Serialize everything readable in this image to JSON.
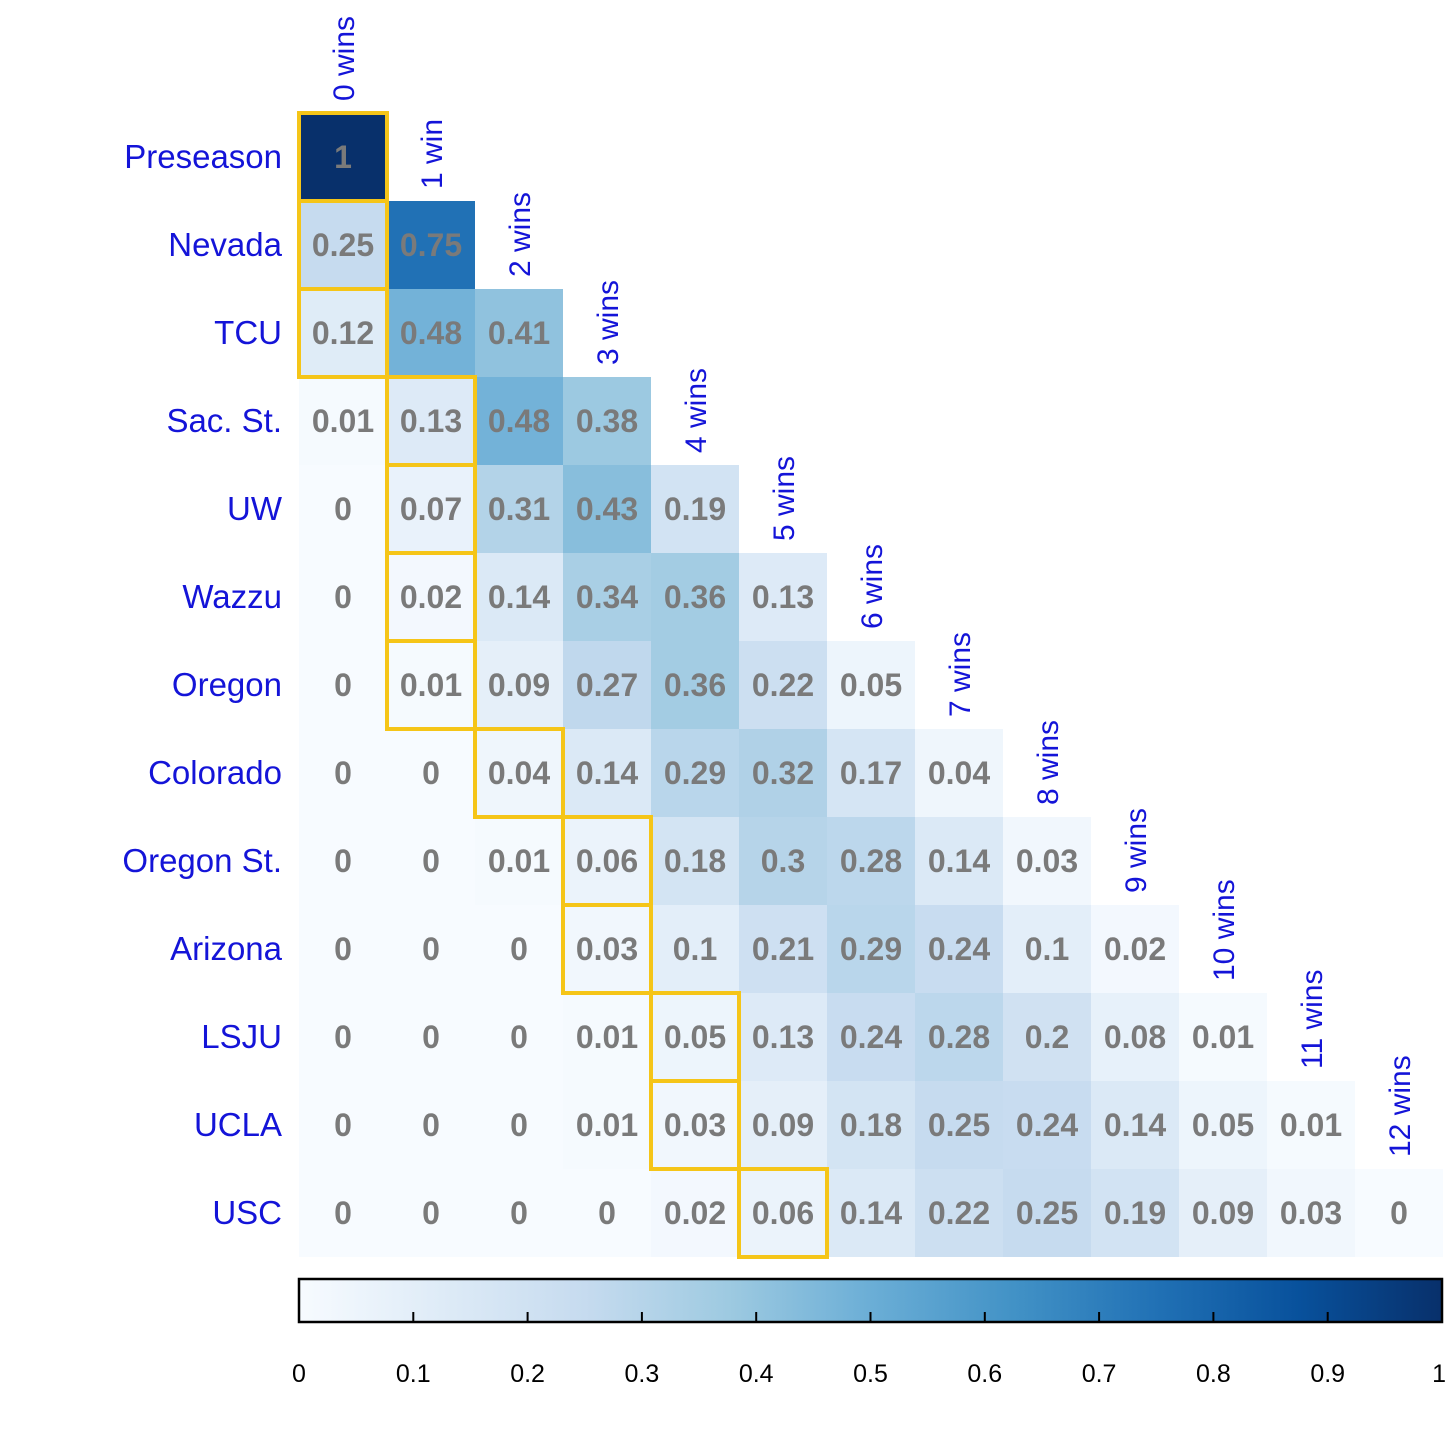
{
  "chart_data": {
    "type": "heatmap",
    "title": "",
    "rows": [
      "Preseason",
      "Nevada",
      "TCU",
      "Sac. St.",
      "UW",
      "Wazzu",
      "Oregon",
      "Colorado",
      "Oregon St.",
      "Arizona",
      "LSJU",
      "UCLA",
      "USC"
    ],
    "columns": [
      "0 wins",
      "1 win",
      "2 wins",
      "3 wins",
      "4 wins",
      "5 wins",
      "6 wins",
      "7 wins",
      "8 wins",
      "9 wins",
      "10 wins",
      "11 wins",
      "12 wins"
    ],
    "cells": [
      [
        {
          "v": 1,
          "t": "1"
        }
      ],
      [
        {
          "v": 0.25,
          "t": "0.25"
        },
        {
          "v": 0.75,
          "t": "0.75"
        }
      ],
      [
        {
          "v": 0.12,
          "t": "0.12"
        },
        {
          "v": 0.48,
          "t": "0.48"
        },
        {
          "v": 0.41,
          "t": "0.41"
        }
      ],
      [
        {
          "v": 0.01,
          "t": "0.01"
        },
        {
          "v": 0.13,
          "t": "0.13"
        },
        {
          "v": 0.48,
          "t": "0.48"
        },
        {
          "v": 0.38,
          "t": "0.38"
        }
      ],
      [
        {
          "v": 0,
          "t": "0"
        },
        {
          "v": 0.07,
          "t": "0.07"
        },
        {
          "v": 0.31,
          "t": "0.31"
        },
        {
          "v": 0.43,
          "t": "0.43"
        },
        {
          "v": 0.19,
          "t": "0.19"
        }
      ],
      [
        {
          "v": 0,
          "t": "0"
        },
        {
          "v": 0.02,
          "t": "0.02"
        },
        {
          "v": 0.14,
          "t": "0.14"
        },
        {
          "v": 0.34,
          "t": "0.34"
        },
        {
          "v": 0.36,
          "t": "0.36"
        },
        {
          "v": 0.13,
          "t": "0.13"
        }
      ],
      [
        {
          "v": 0,
          "t": "0"
        },
        {
          "v": 0.01,
          "t": "0.01"
        },
        {
          "v": 0.09,
          "t": "0.09"
        },
        {
          "v": 0.27,
          "t": "0.27"
        },
        {
          "v": 0.36,
          "t": "0.36"
        },
        {
          "v": 0.22,
          "t": "0.22"
        },
        {
          "v": 0.05,
          "t": "0.05"
        }
      ],
      [
        {
          "v": 0,
          "t": "0"
        },
        {
          "v": 0,
          "t": "0"
        },
        {
          "v": 0.04,
          "t": "0.04"
        },
        {
          "v": 0.14,
          "t": "0.14"
        },
        {
          "v": 0.29,
          "t": "0.29"
        },
        {
          "v": 0.32,
          "t": "0.32"
        },
        {
          "v": 0.17,
          "t": "0.17"
        },
        {
          "v": 0.04,
          "t": "0.04"
        }
      ],
      [
        {
          "v": 0,
          "t": "0"
        },
        {
          "v": 0,
          "t": "0"
        },
        {
          "v": 0.01,
          "t": "0.01"
        },
        {
          "v": 0.06,
          "t": "0.06"
        },
        {
          "v": 0.18,
          "t": "0.18"
        },
        {
          "v": 0.3,
          "t": "0.3"
        },
        {
          "v": 0.28,
          "t": "0.28"
        },
        {
          "v": 0.14,
          "t": "0.14"
        },
        {
          "v": 0.03,
          "t": "0.03"
        }
      ],
      [
        {
          "v": 0,
          "t": "0"
        },
        {
          "v": 0,
          "t": "0"
        },
        {
          "v": 0,
          "t": "0"
        },
        {
          "v": 0.03,
          "t": "0.03"
        },
        {
          "v": 0.1,
          "t": "0.1"
        },
        {
          "v": 0.21,
          "t": "0.21"
        },
        {
          "v": 0.29,
          "t": "0.29"
        },
        {
          "v": 0.24,
          "t": "0.24"
        },
        {
          "v": 0.1,
          "t": "0.1"
        },
        {
          "v": 0.02,
          "t": "0.02"
        }
      ],
      [
        {
          "v": 0,
          "t": "0"
        },
        {
          "v": 0,
          "t": "0"
        },
        {
          "v": 0,
          "t": "0"
        },
        {
          "v": 0.01,
          "t": "0.01"
        },
        {
          "v": 0.05,
          "t": "0.05"
        },
        {
          "v": 0.13,
          "t": "0.13"
        },
        {
          "v": 0.24,
          "t": "0.24"
        },
        {
          "v": 0.28,
          "t": "0.28"
        },
        {
          "v": 0.2,
          "t": "0.2"
        },
        {
          "v": 0.08,
          "t": "0.08"
        },
        {
          "v": 0.01,
          "t": "0.01"
        }
      ],
      [
        {
          "v": 0,
          "t": "0"
        },
        {
          "v": 0,
          "t": "0"
        },
        {
          "v": 0,
          "t": "0"
        },
        {
          "v": 0.01,
          "t": "0.01"
        },
        {
          "v": 0.03,
          "t": "0.03"
        },
        {
          "v": 0.09,
          "t": "0.09"
        },
        {
          "v": 0.18,
          "t": "0.18"
        },
        {
          "v": 0.25,
          "t": "0.25"
        },
        {
          "v": 0.24,
          "t": "0.24"
        },
        {
          "v": 0.14,
          "t": "0.14"
        },
        {
          "v": 0.05,
          "t": "0.05"
        },
        {
          "v": 0.01,
          "t": "0.01"
        }
      ],
      [
        {
          "v": 0,
          "t": "0"
        },
        {
          "v": 0,
          "t": "0"
        },
        {
          "v": 0,
          "t": "0"
        },
        {
          "v": 0,
          "t": "0"
        },
        {
          "v": 0.02,
          "t": "0.02"
        },
        {
          "v": 0.06,
          "t": "0.06"
        },
        {
          "v": 0.14,
          "t": "0.14"
        },
        {
          "v": 0.22,
          "t": "0.22"
        },
        {
          "v": 0.25,
          "t": "0.25"
        },
        {
          "v": 0.19,
          "t": "0.19"
        },
        {
          "v": 0.09,
          "t": "0.09"
        },
        {
          "v": 0.03,
          "t": "0.03"
        },
        {
          "v": 0,
          "t": "0"
        }
      ]
    ],
    "highlighted_cells": [
      [
        0,
        0
      ],
      [
        1,
        0
      ],
      [
        2,
        0
      ],
      [
        3,
        1
      ],
      [
        4,
        1
      ],
      [
        5,
        1
      ],
      [
        6,
        1
      ],
      [
        7,
        2
      ],
      [
        8,
        3
      ],
      [
        9,
        3
      ],
      [
        10,
        4
      ],
      [
        11,
        4
      ],
      [
        12,
        5
      ]
    ],
    "colorbar": {
      "range": [
        0,
        1
      ],
      "ticks": [
        "0",
        "0.1",
        "0.2",
        "0.3",
        "0.4",
        "0.5",
        "0.6",
        "0.7",
        "0.8",
        "0.9",
        "1"
      ],
      "colormap": [
        "#f7fbff",
        "#deebf7",
        "#c6dbef",
        "#9ecae1",
        "#6baed6",
        "#4292c6",
        "#2171b5",
        "#08519c",
        "#08306b"
      ]
    },
    "colors": {
      "row_label": "#1414d8",
      "col_label": "#1414d8",
      "cell_text": "#7a7a7a",
      "highlight_border": "#f5c518"
    }
  }
}
